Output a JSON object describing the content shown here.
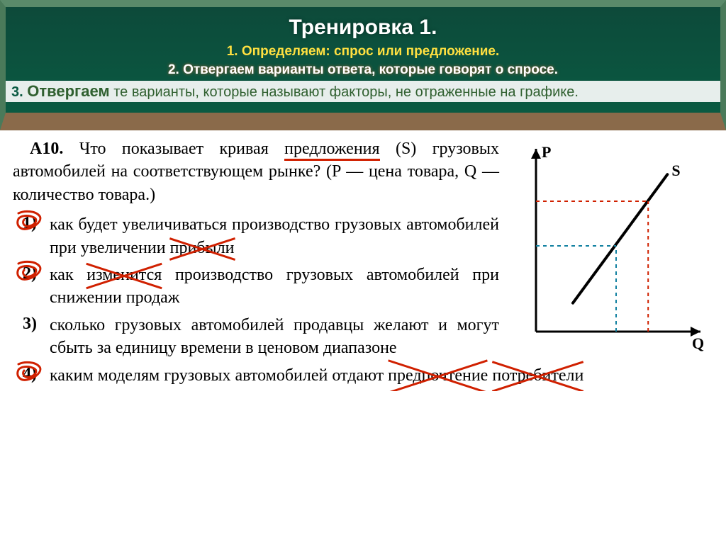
{
  "chalkboard": {
    "title": "Тренировка 1.",
    "step1": "1. Определяем: спрос или предложение.",
    "step2": "2. Отвергаем варианты ответа, которые говорят о спросе.",
    "step3_num": "3.",
    "step3_lead": "Отвергаем",
    "step3_rest": " те варианты, которые называют факторы, не отраженные на графике.",
    "title_color": "#ffffff",
    "step1_color": "#ffe040",
    "step2_color": "#ffffff",
    "step3_bg": "#e8f0e8",
    "step3_color": "#2a6a2a"
  },
  "question": {
    "number": "А10.",
    "pre_underline": "Что показывает кривая ",
    "underlined": "предло­жения",
    "post_underline": " (S) грузовых автомобилей на соот­ветствующем рынке? (P — цена товара, Q — количество товара.)",
    "underline_color": "#d02000"
  },
  "options": [
    {
      "num": "1)",
      "crossed_num": true,
      "segments": [
        {
          "t": "как будет увеличиваться произ­водство грузовых автомобилей при увеличении ",
          "x": false
        },
        {
          "t": "прибыли",
          "x": true
        }
      ]
    },
    {
      "num": "2)",
      "crossed_num": true,
      "segments": [
        {
          "t": "как ",
          "x": false
        },
        {
          "t": "изменится",
          "x": true
        },
        {
          "t": " производство гру­зовых автомобилей при снижении продаж",
          "x": false
        }
      ]
    },
    {
      "num": "3)",
      "crossed_num": false,
      "segments": [
        {
          "t": "сколько грузовых автомобилей продавцы желают и могут сбыть за единицу времени в це­новом диапазоне",
          "x": false
        }
      ]
    },
    {
      "num": "4)",
      "crossed_num": true,
      "segments": [
        {
          "t": "каким моделям грузовых автомобилей отдают ",
          "x": false
        },
        {
          "t": "предпочте­ние",
          "x": true
        },
        {
          "t": " ",
          "x": false
        },
        {
          "t": "потребители",
          "x": true
        }
      ]
    }
  ],
  "chart": {
    "type": "line",
    "x_label": "Q",
    "y_label": "P",
    "series_label": "S",
    "axis_color": "#000000",
    "line_color": "#000000",
    "line_width": 4,
    "dash_color_1": "#d02000",
    "dash_color_2": "#1080a0",
    "background_color": "#ffffff",
    "label_fontsize": 22,
    "xlim": [
      0,
      10
    ],
    "ylim": [
      0,
      10
    ],
    "supply_line": {
      "x1": 2.3,
      "y1": 1.6,
      "x2": 8.2,
      "y2": 8.8
    },
    "ref_points": [
      {
        "x": 5.0,
        "y": 4.8,
        "color": "#1080a0"
      },
      {
        "x": 7.0,
        "y": 7.3,
        "color": "#d02000"
      }
    ],
    "arrow_size": 10
  },
  "annotation": {
    "scribble_color": "#d02000",
    "cross_color": "#d02000"
  }
}
